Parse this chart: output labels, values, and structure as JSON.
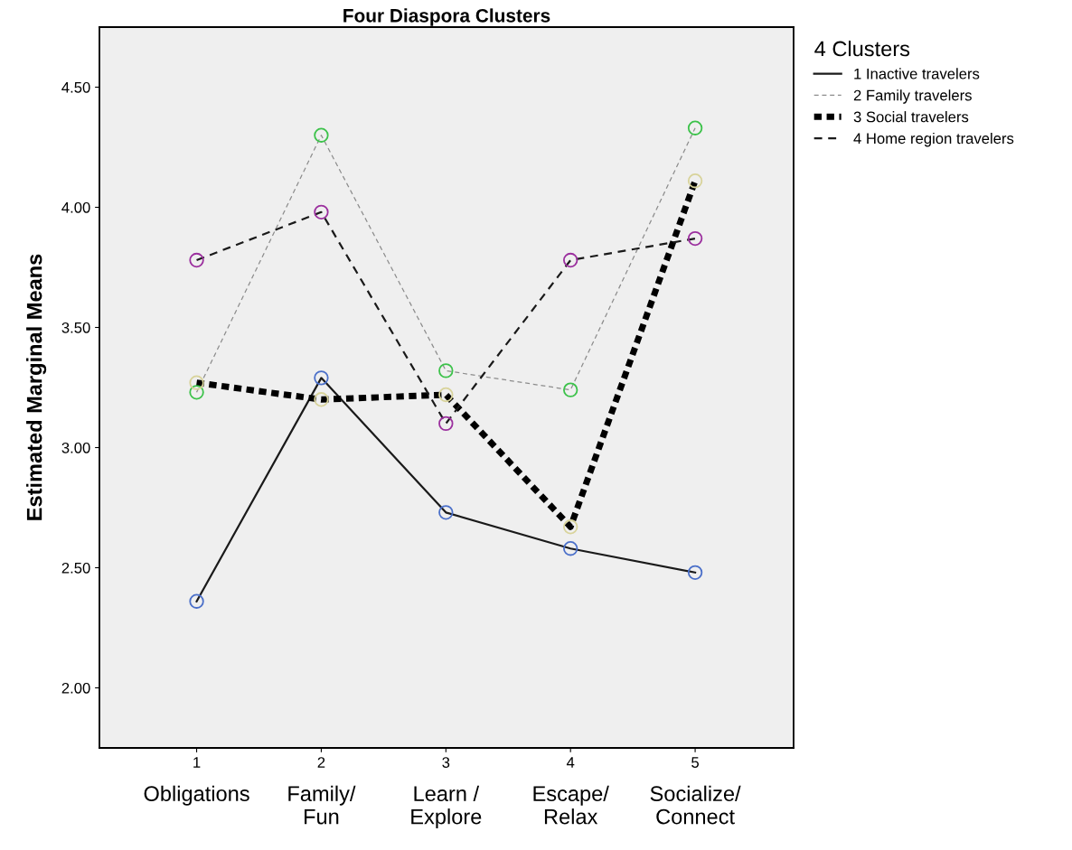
{
  "chart_data": {
    "type": "line",
    "title": "Four Diaspora Clusters",
    "ylabel": "Estimated Marginal Means",
    "categories": [
      "1",
      "2",
      "3",
      "4",
      "5"
    ],
    "annotations": [
      "Obligations",
      "Family/\nFun",
      "Learn /\nExplore",
      "Escape/\nRelax",
      "Socialize/\nConnect"
    ],
    "ylim": [
      1.75,
      4.75
    ],
    "yticks": [
      {
        "value": 2.0,
        "label": "2.00"
      },
      {
        "value": 2.5,
        "label": "2.50"
      },
      {
        "value": 3.0,
        "label": "3.00"
      },
      {
        "value": 3.5,
        "label": "3.50"
      },
      {
        "value": 4.0,
        "label": "4.00"
      },
      {
        "value": 4.5,
        "label": "4.50"
      }
    ],
    "legend_title": "4 Clusters",
    "legend": "right",
    "grid": false,
    "marker": "circle",
    "series": [
      {
        "name": "1 Inactive travelers",
        "color": "#1a1a1a",
        "line_style": "solid",
        "colors": [
          "#4a6fc9",
          "#4a6fc9",
          "#4a6fc9",
          "#4a6fc9",
          "#4a6fc9"
        ],
        "values": [
          2.36,
          3.29,
          2.73,
          2.58,
          2.48
        ]
      },
      {
        "name": "2 Family travelers",
        "color": "#8c8c8c",
        "line_style": "dashed",
        "colors": [
          "#3cc24a",
          "#3cc24a",
          "#3cc24a",
          "#3cc24a",
          "#3cc24a"
        ],
        "values": [
          3.23,
          4.3,
          3.32,
          3.24,
          4.33
        ]
      },
      {
        "name": "3 Social travelers",
        "color": "#000000",
        "line_style": "dotted",
        "colors": [
          "#d8d39a",
          "#d8d39a",
          "#d8d39a",
          "#d8d39a",
          "#d8d39a"
        ],
        "values": [
          3.27,
          3.2,
          3.22,
          2.67,
          4.11
        ]
      },
      {
        "name": "4 Home region travelers",
        "color": "#1a1a1a",
        "line_style": "dashed",
        "colors": [
          "#9b2f9e",
          "#9b2f9e",
          "#9b2f9e",
          "#9b2f9e",
          "#9b2f9e"
        ],
        "values": [
          3.78,
          3.98,
          3.1,
          3.78,
          3.87
        ]
      }
    ]
  }
}
